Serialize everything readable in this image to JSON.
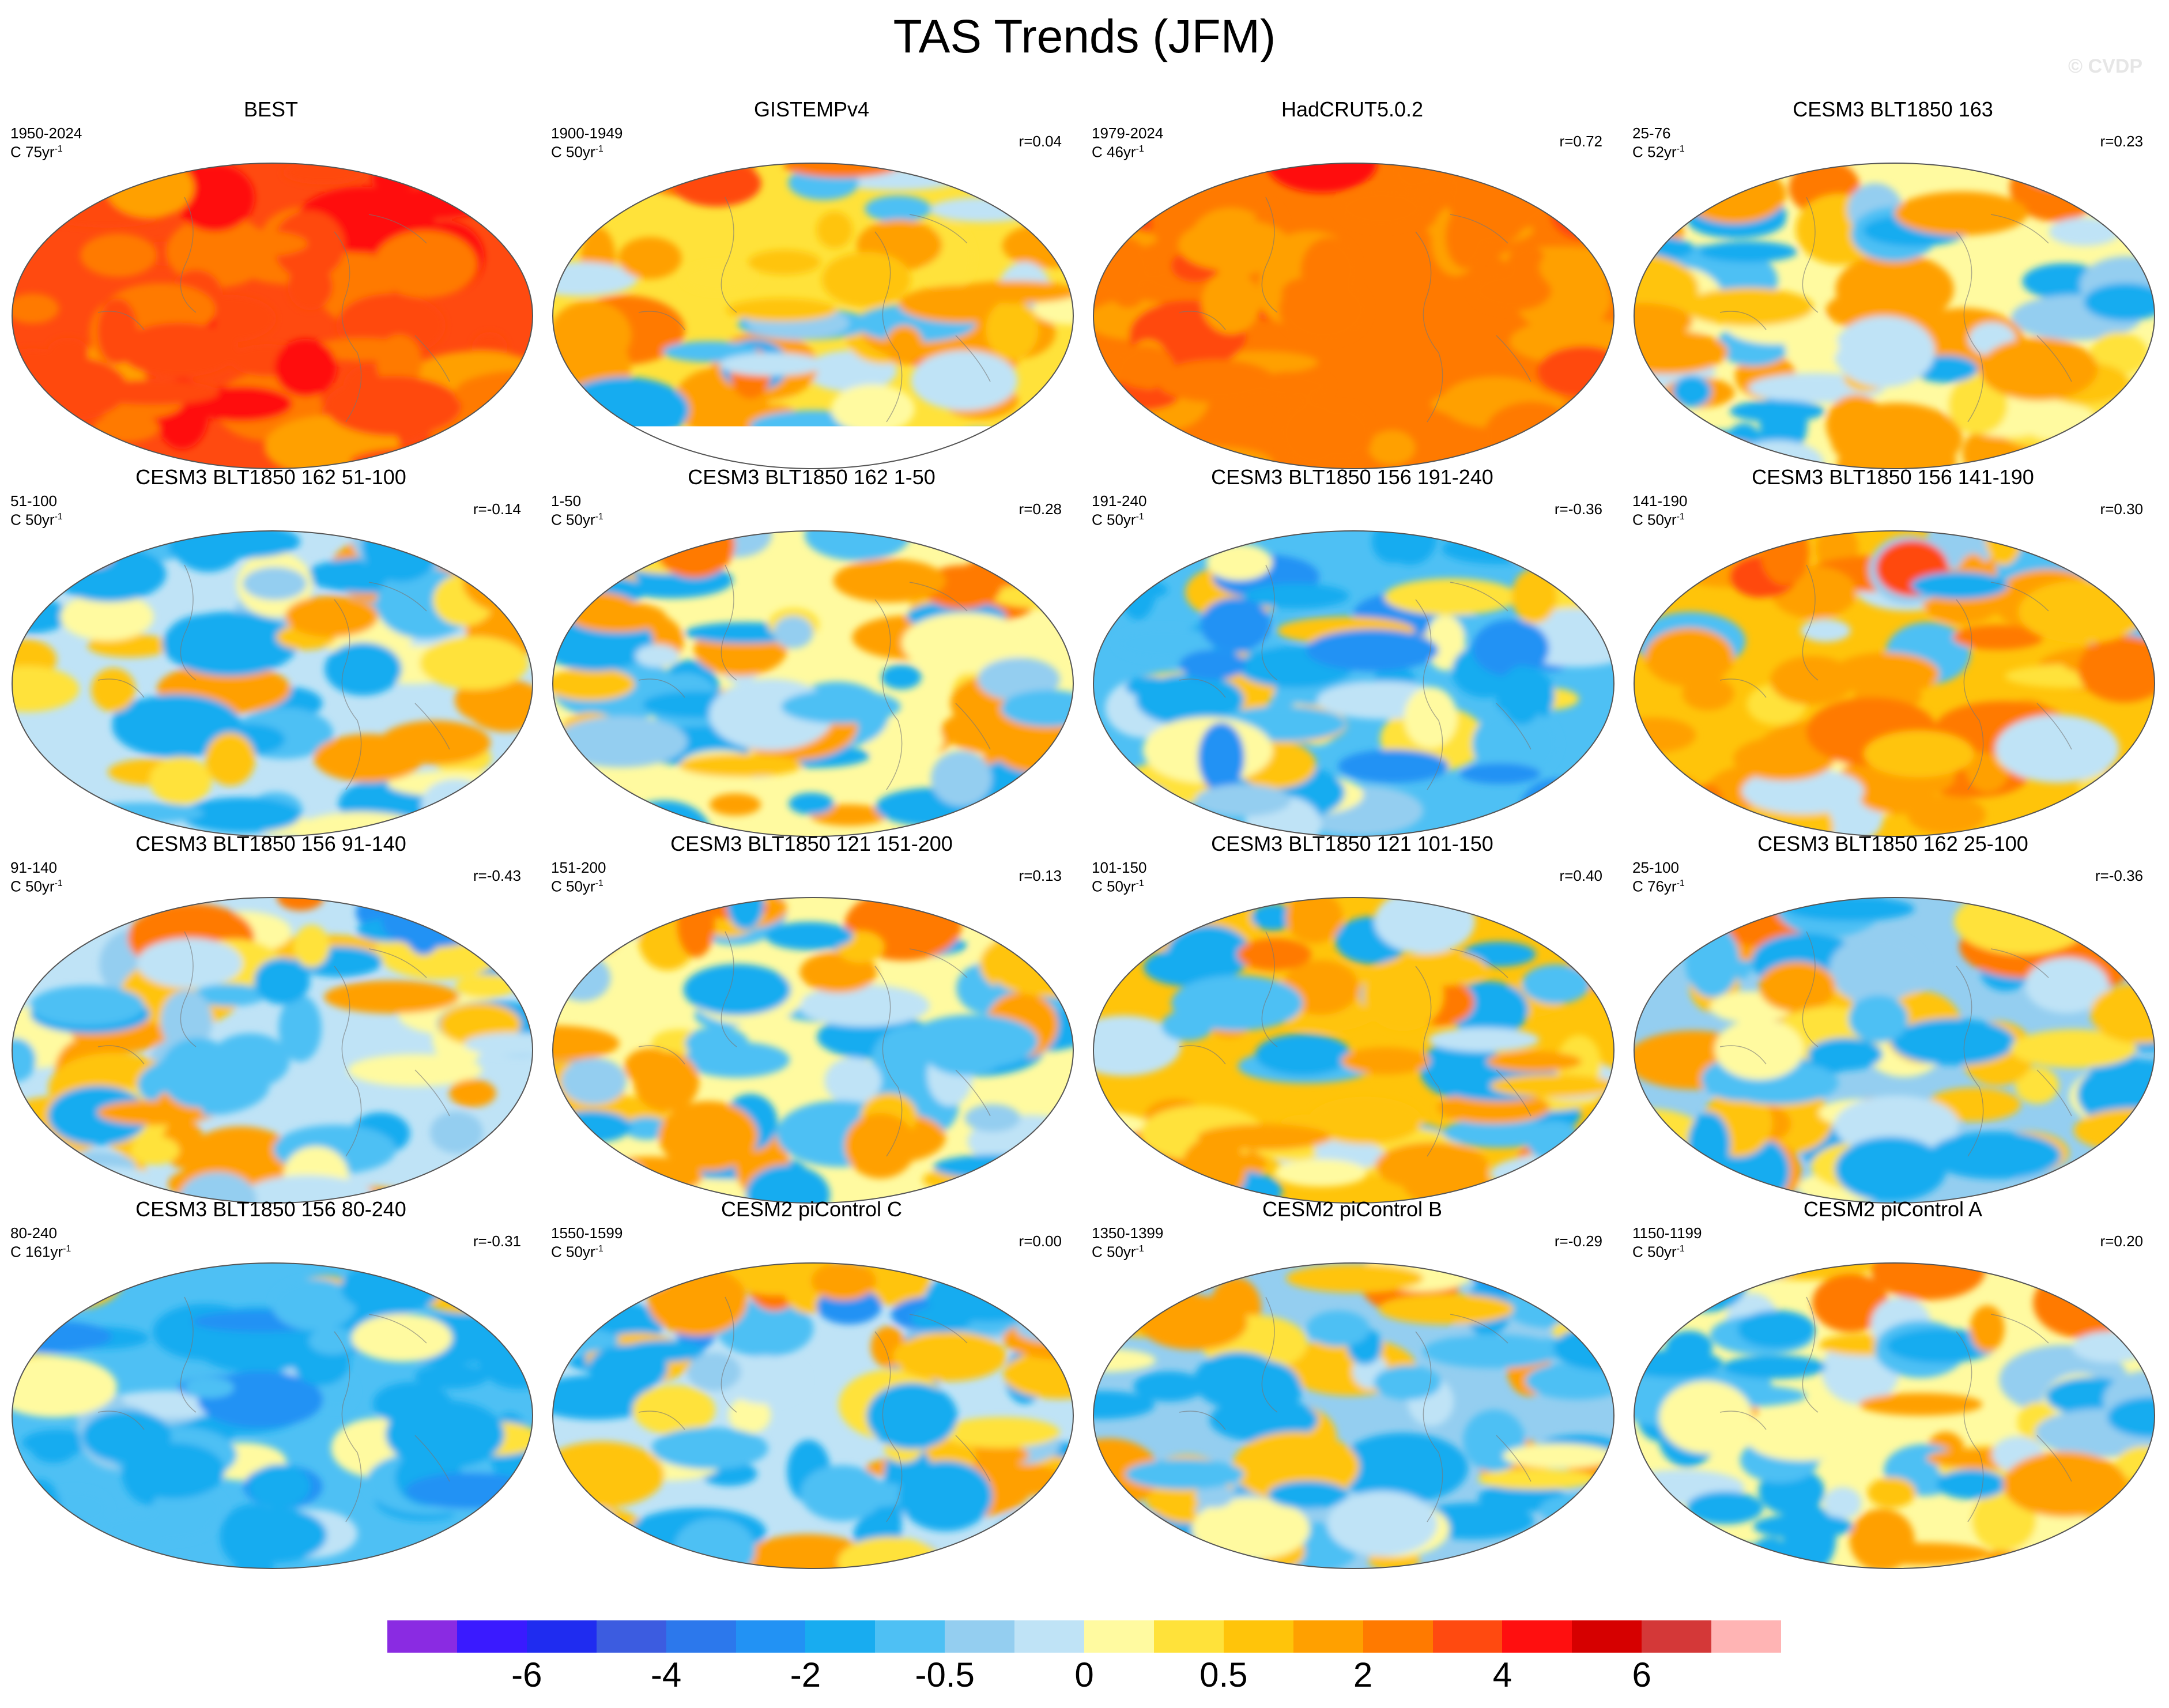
{
  "figure": {
    "title": "TAS Trends (JFM)",
    "watermark": "© CVDP",
    "colors": [
      "#8a2be2",
      "#3a1aff",
      "#1f2cf0",
      "#3c5ce0",
      "#2c78ec",
      "#2292f4",
      "#18acf0",
      "#4ec0f4",
      "#94cef0",
      "#bfe3f6",
      "#fffaa0",
      "#ffe23a",
      "#ffc40a",
      "#ffa000",
      "#ff7a00",
      "#ff4a10",
      "#ff0f0f",
      "#d60000",
      "#d43838",
      "#ffb4b4"
    ],
    "colorbar_labels": [
      {
        "text": "-6",
        "index": 2
      },
      {
        "text": "-4",
        "index": 4
      },
      {
        "text": "-2",
        "index": 6
      },
      {
        "text": "-0.5",
        "index": 8
      },
      {
        "text": "0",
        "index": 10
      },
      {
        "text": "0.5",
        "index": 12
      },
      {
        "text": "2",
        "index": 14
      },
      {
        "text": "4",
        "index": 16
      },
      {
        "text": "6",
        "index": 18
      }
    ]
  },
  "chart_data": [
    {
      "type": "heatmap",
      "title": "BEST",
      "period": "1950-2024",
      "length": "C 75yr",
      "corr": "",
      "mean": 3.2,
      "spread": 1.3,
      "antarctica_missing": false
    },
    {
      "type": "heatmap",
      "title": "GISTEMPv4",
      "period": "1900-1949",
      "length": "C 50yr",
      "corr": "r=0.04",
      "mean": 0.4,
      "spread": 1.8,
      "antarctica_missing": true
    },
    {
      "type": "heatmap",
      "title": "HadCRUT5.0.2",
      "period": "1979-2024",
      "length": "C 46yr",
      "corr": "r=0.72",
      "mean": 2.6,
      "spread": 1.3,
      "antarctica_missing": false
    },
    {
      "type": "heatmap",
      "title": "CESM3 BLT1850 163",
      "period": "25-76",
      "length": "C 52yr",
      "corr": "r=0.23",
      "mean": 0.2,
      "spread": 1.8,
      "antarctica_missing": false
    },
    {
      "type": "heatmap",
      "title": "CESM3 BLT1850 162 51-100",
      "period": "51-100",
      "length": "C 50yr",
      "corr": "r=-0.14",
      "mean": -0.1,
      "spread": 1.8,
      "antarctica_missing": false
    },
    {
      "type": "heatmap",
      "title": "CESM3 BLT1850 162 1-50",
      "period": "1-50",
      "length": "C 50yr",
      "corr": "r=0.28",
      "mean": 0.2,
      "spread": 1.8,
      "antarctica_missing": false
    },
    {
      "type": "heatmap",
      "title": "CESM3 BLT1850 156 191-240",
      "period": "191-240",
      "length": "C 50yr",
      "corr": "r=-0.36",
      "mean": -0.9,
      "spread": 1.7,
      "antarctica_missing": false
    },
    {
      "type": "heatmap",
      "title": "CESM3 BLT1850 156 141-190",
      "period": "141-190",
      "length": "C 50yr",
      "corr": "r=0.30",
      "mean": 0.8,
      "spread": 1.7,
      "antarctica_missing": false
    },
    {
      "type": "heatmap",
      "title": "CESM3 BLT1850 156 91-140",
      "period": "91-140",
      "length": "C 50yr",
      "corr": "r=-0.43",
      "mean": -0.1,
      "spread": 1.8,
      "antarctica_missing": false
    },
    {
      "type": "heatmap",
      "title": "CESM3 BLT1850 121 151-200",
      "period": "151-200",
      "length": "C 50yr",
      "corr": "r=0.13",
      "mean": 0.2,
      "spread": 1.8,
      "antarctica_missing": false
    },
    {
      "type": "heatmap",
      "title": "CESM3 BLT1850 121 101-150",
      "period": "101-150",
      "length": "C 50yr",
      "corr": "r=0.40",
      "mean": 0.5,
      "spread": 1.8,
      "antarctica_missing": false
    },
    {
      "type": "heatmap",
      "title": "CESM3 BLT1850 162 25-100",
      "period": "25-100",
      "length": "C 76yr",
      "corr": "r=-0.36",
      "mean": -0.3,
      "spread": 1.7,
      "antarctica_missing": false
    },
    {
      "type": "heatmap",
      "title": "CESM3 BLT1850 156 80-240",
      "period": "80-240",
      "length": "C 161yr",
      "corr": "r=-0.31",
      "mean": -0.9,
      "spread": 1.3,
      "antarctica_missing": false
    },
    {
      "type": "heatmap",
      "title": "CESM2 piControl C",
      "period": "1550-1599",
      "length": "C 50yr",
      "corr": "r=0.00",
      "mean": -0.1,
      "spread": 1.7,
      "antarctica_missing": false
    },
    {
      "type": "heatmap",
      "title": "CESM2 piControl B",
      "period": "1350-1399",
      "length": "C 50yr",
      "corr": "r=-0.29",
      "mean": -0.4,
      "spread": 1.8,
      "antarctica_missing": false
    },
    {
      "type": "heatmap",
      "title": "CESM2 piControl A",
      "period": "1150-1199",
      "length": "C 50yr",
      "corr": "r=0.20",
      "mean": 0.0,
      "spread": 1.7,
      "antarctica_missing": false
    }
  ]
}
